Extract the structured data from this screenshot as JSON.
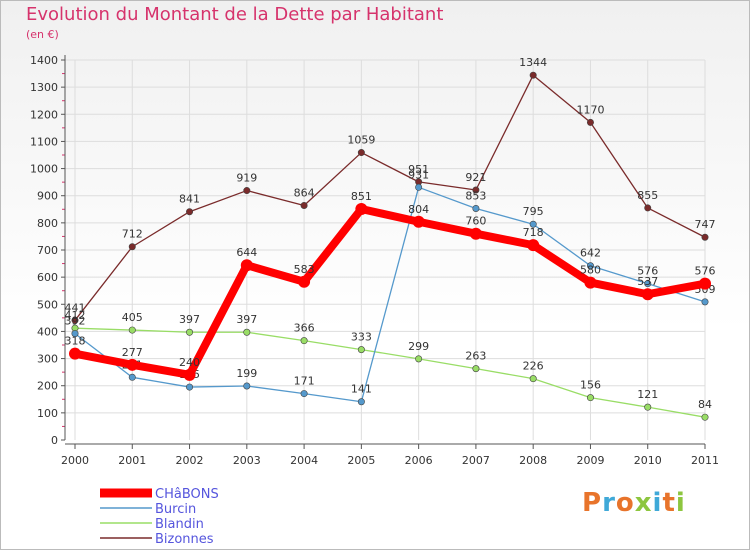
{
  "header": {
    "title": "Evolution du Montant de la Dette par Habitant",
    "subtitle": "(en €)"
  },
  "logo": {
    "text": "Proxiti",
    "colors": [
      "#e8742b",
      "#3fa9d8",
      "#e8742b",
      "#8dc63f",
      "#3fa9d8",
      "#e8742b",
      "#8dc63f"
    ]
  },
  "chart_data": {
    "type": "line",
    "x": [
      "2000",
      "2001",
      "2002",
      "2003",
      "2004",
      "2005",
      "2006",
      "2007",
      "2008",
      "2009",
      "2010",
      "2011"
    ],
    "ylim": [
      0,
      1400
    ],
    "yticks": [
      0,
      100,
      200,
      300,
      400,
      500,
      600,
      700,
      800,
      900,
      1000,
      1100,
      1200,
      1300,
      1400
    ],
    "grid": true,
    "legend_position": "bottom-left",
    "series": [
      {
        "name": "Bizonnes",
        "color": "#7a2b2b",
        "values": [
          441,
          712,
          841,
          919,
          864,
          1059,
          951,
          921,
          1344,
          1170,
          855,
          747
        ]
      },
      {
        "name": "Blandin",
        "color": "#99dd66",
        "values": [
          412,
          405,
          397,
          397,
          366,
          333,
          299,
          263,
          226,
          156,
          121,
          84
        ]
      },
      {
        "name": "Burcin",
        "color": "#5599cc",
        "values": [
          392,
          231,
          195,
          199,
          171,
          141,
          931,
          853,
          795,
          642,
          576,
          509
        ]
      },
      {
        "name": "CHâBONS",
        "color": "#ff0000",
        "values": [
          318,
          277,
          240,
          644,
          583,
          851,
          804,
          760,
          718,
          580,
          537,
          576
        ]
      }
    ],
    "legend_order": [
      "CHâBONS",
      "Burcin",
      "Blandin",
      "Bizonnes"
    ]
  }
}
